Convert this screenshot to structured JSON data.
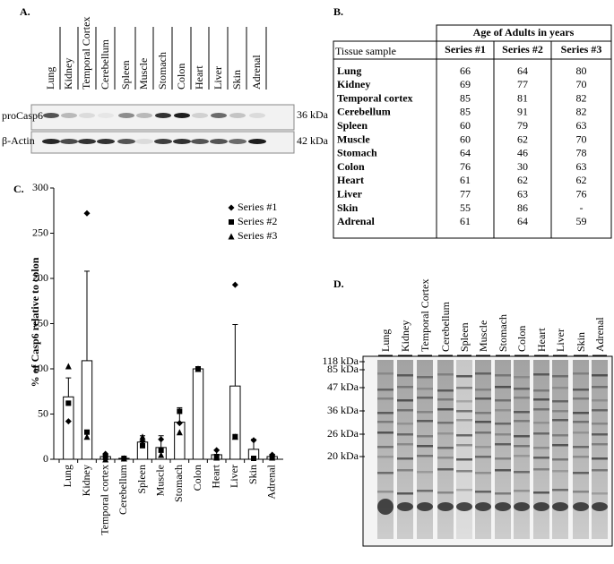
{
  "panel_labels": [
    "A.",
    "B.",
    "C.",
    "D."
  ],
  "blot": {
    "lanes": [
      "Lung",
      "Kidney",
      "Temporal Cortex",
      "Cerebellum",
      "Spleen",
      "Muscle",
      "Stomach",
      "Colon",
      "Heart",
      "Liver",
      "Skin",
      "Adrenal"
    ],
    "rows": [
      "proCasp6",
      "β-Actin"
    ],
    "sizes": [
      "36 kDa",
      "42 kDa"
    ]
  },
  "table": {
    "title": "Age of Adults in years",
    "row_header": "Tissue sample",
    "columns": [
      "Series #1",
      "Series #2",
      "Series #3"
    ],
    "rows": [
      [
        "Lung",
        66,
        64,
        80
      ],
      [
        "Kidney",
        69,
        77,
        70
      ],
      [
        "Temporal cortex",
        85,
        81,
        82
      ],
      [
        "Cerebellum",
        85,
        91,
        82
      ],
      [
        "Spleen",
        60,
        79,
        63
      ],
      [
        "Muscle",
        60,
        62,
        70
      ],
      [
        "Stomach",
        64,
        46,
        78
      ],
      [
        "Colon",
        76,
        30,
        63
      ],
      [
        "Heart",
        61,
        62,
        62
      ],
      [
        "Liver",
        77,
        63,
        76
      ],
      [
        "Skin",
        55,
        86,
        "-"
      ],
      [
        "Adrenal",
        61,
        64,
        59
      ]
    ]
  },
  "chart_data": {
    "type": "bar",
    "y_label": "% of  Casp6 relative to colon",
    "categories": [
      "Lung",
      "Kidney",
      "Temporal cortex",
      "Cerebellum",
      "Spleen",
      "Muscle",
      "Stomach",
      "Colon",
      "Heart",
      "Liver",
      "Skin",
      "Adrenal"
    ],
    "values": [
      69,
      109,
      3,
      1,
      19,
      13,
      41,
      100,
      5,
      81,
      11,
      3
    ],
    "errors": [
      21,
      99,
      2,
      0.5,
      7,
      13,
      16,
      1,
      5,
      68,
      11,
      1
    ],
    "color": "#ffffff",
    "series": [
      {
        "name": "Series #1",
        "marker": "diamond",
        "color": "#000000",
        "values": [
          42,
          272,
          6,
          1,
          20,
          22,
          40,
          100,
          10,
          193,
          21,
          5
        ]
      },
      {
        "name": "Series #2",
        "marker": "square",
        "color": "#000000",
        "values": [
          62,
          30,
          2,
          1,
          15,
          10,
          53,
          100,
          3,
          25,
          1,
          3
        ]
      },
      {
        "name": "Series #3",
        "marker": "triangle",
        "color": "#000000",
        "values": [
          103,
          25,
          0,
          1,
          25,
          5,
          30,
          100,
          2,
          25,
          null,
          2
        ]
      }
    ],
    "ylim": [
      0,
      300
    ],
    "yticks": [
      0,
      50,
      100,
      150,
      200,
      250,
      300
    ],
    "grid": false,
    "legend": "upper right"
  },
  "gel": {
    "lanes": [
      "Lung",
      "Kidney",
      "Temporal Cortex",
      "Cerebellum",
      "Spleen",
      "Muscle",
      "Stomach",
      "Colon",
      "Heart",
      "Liver",
      "Skin",
      "Adrenal"
    ],
    "markers": [
      "118 kDa",
      "85 kDa",
      "47 kDa",
      "36 kDa",
      "26 kDa",
      "20 kDa"
    ]
  }
}
